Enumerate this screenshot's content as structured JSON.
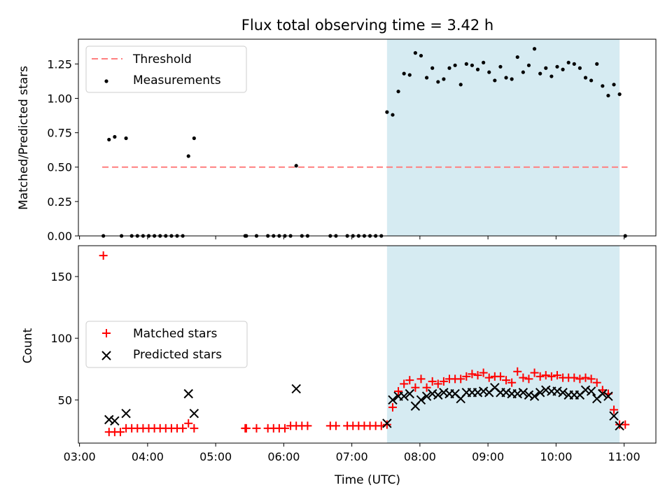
{
  "figure": {
    "title": "Flux total observing time = 3.42 h",
    "xlabel": "Time (UTC)"
  },
  "chart_data": [
    {
      "type": "scatter",
      "ylabel": "Matched/Predicted stars",
      "ylim": [
        0,
        1.43
      ],
      "yticks": [
        "0.00",
        "0.25",
        "0.50",
        "0.75",
        "1.00",
        "1.25"
      ],
      "xlim": [
        "02:59",
        "11:28"
      ],
      "shaded_span": [
        "07:31",
        "10:56"
      ],
      "shade_color": "#add8e6",
      "legend_position": "top-left",
      "threshold": {
        "name": "Threshold",
        "value": 0.5,
        "x_range": [
          "03:20",
          "11:03"
        ],
        "color": "#ff7f7f"
      },
      "series": [
        {
          "name": "Measurements",
          "color": "#000000",
          "marker": "dot",
          "points": [
            [
              "03:21",
              0
            ],
            [
              "03:26",
              0.7
            ],
            [
              "03:31",
              0.72
            ],
            [
              "03:37",
              0
            ],
            [
              "03:41",
              0.71
            ],
            [
              "03:46",
              0
            ],
            [
              "03:51",
              0
            ],
            [
              "03:56",
              0
            ],
            [
              "04:01",
              0
            ],
            [
              "04:06",
              0
            ],
            [
              "04:11",
              0
            ],
            [
              "04:16",
              0
            ],
            [
              "04:21",
              0
            ],
            [
              "04:26",
              0
            ],
            [
              "04:31",
              0
            ],
            [
              "04:36",
              0.58
            ],
            [
              "04:41",
              0.71
            ],
            [
              "05:26",
              0
            ],
            [
              "05:27",
              0
            ],
            [
              "05:36",
              0
            ],
            [
              "05:46",
              0
            ],
            [
              "05:51",
              0
            ],
            [
              "05:56",
              0
            ],
            [
              "06:01",
              0
            ],
            [
              "06:06",
              0
            ],
            [
              "06:11",
              0.51
            ],
            [
              "06:16",
              0
            ],
            [
              "06:21",
              0
            ],
            [
              "06:41",
              0
            ],
            [
              "06:46",
              0
            ],
            [
              "06:56",
              0
            ],
            [
              "07:01",
              0
            ],
            [
              "07:06",
              0
            ],
            [
              "07:11",
              0
            ],
            [
              "07:16",
              0
            ],
            [
              "07:21",
              0
            ],
            [
              "07:26",
              0
            ],
            [
              "07:31",
              0.9
            ],
            [
              "07:36",
              0.88
            ],
            [
              "07:41",
              1.05
            ],
            [
              "07:46",
              1.18
            ],
            [
              "07:51",
              1.17
            ],
            [
              "07:56",
              1.33
            ],
            [
              "08:01",
              1.31
            ],
            [
              "08:06",
              1.15
            ],
            [
              "08:11",
              1.22
            ],
            [
              "08:16",
              1.12
            ],
            [
              "08:21",
              1.14
            ],
            [
              "08:26",
              1.22
            ],
            [
              "08:31",
              1.24
            ],
            [
              "08:36",
              1.1
            ],
            [
              "08:41",
              1.25
            ],
            [
              "08:46",
              1.24
            ],
            [
              "08:51",
              1.21
            ],
            [
              "08:56",
              1.26
            ],
            [
              "09:01",
              1.19
            ],
            [
              "09:06",
              1.13
            ],
            [
              "09:11",
              1.23
            ],
            [
              "09:16",
              1.15
            ],
            [
              "09:21",
              1.14
            ],
            [
              "09:26",
              1.3
            ],
            [
              "09:31",
              1.19
            ],
            [
              "09:36",
              1.24
            ],
            [
              "09:41",
              1.36
            ],
            [
              "09:46",
              1.18
            ],
            [
              "09:51",
              1.22
            ],
            [
              "09:56",
              1.16
            ],
            [
              "10:01",
              1.23
            ],
            [
              "10:06",
              1.21
            ],
            [
              "10:11",
              1.26
            ],
            [
              "10:16",
              1.25
            ],
            [
              "10:21",
              1.22
            ],
            [
              "10:26",
              1.15
            ],
            [
              "10:31",
              1.13
            ],
            [
              "10:36",
              1.25
            ],
            [
              "10:41",
              1.09
            ],
            [
              "10:46",
              1.02
            ],
            [
              "10:51",
              1.1
            ],
            [
              "10:56",
              1.03
            ],
            [
              "11:01",
              0
            ]
          ]
        }
      ]
    },
    {
      "type": "scatter",
      "ylabel": "Count",
      "ylim": [
        15,
        175
      ],
      "yticks": [
        "50",
        "100",
        "150"
      ],
      "xlim": [
        "02:59",
        "11:28"
      ],
      "xticks": [
        "03:00",
        "04:00",
        "05:00",
        "06:00",
        "07:00",
        "08:00",
        "09:00",
        "10:00",
        "11:00"
      ],
      "shaded_span": [
        "07:31",
        "10:56"
      ],
      "shade_color": "#add8e6",
      "legend_position": "center-left",
      "series": [
        {
          "name": "Matched stars",
          "color": "#ff0000",
          "marker": "plus",
          "points": [
            [
              "03:21",
              167
            ],
            [
              "03:26",
              24
            ],
            [
              "03:31",
              24
            ],
            [
              "03:36",
              24
            ],
            [
              "03:41",
              27
            ],
            [
              "03:46",
              27
            ],
            [
              "03:51",
              27
            ],
            [
              "03:56",
              27
            ],
            [
              "04:01",
              27
            ],
            [
              "04:06",
              27
            ],
            [
              "04:11",
              27
            ],
            [
              "04:16",
              27
            ],
            [
              "04:21",
              27
            ],
            [
              "04:26",
              27
            ],
            [
              "04:31",
              27
            ],
            [
              "04:36",
              31
            ],
            [
              "04:41",
              27
            ],
            [
              "05:26",
              27
            ],
            [
              "05:27",
              27
            ],
            [
              "05:36",
              27
            ],
            [
              "05:46",
              27
            ],
            [
              "05:51",
              27
            ],
            [
              "05:56",
              27
            ],
            [
              "06:01",
              27
            ],
            [
              "06:06",
              29
            ],
            [
              "06:11",
              29
            ],
            [
              "06:16",
              29
            ],
            [
              "06:21",
              29
            ],
            [
              "06:41",
              29
            ],
            [
              "06:46",
              29
            ],
            [
              "06:56",
              29
            ],
            [
              "07:01",
              29
            ],
            [
              "07:06",
              29
            ],
            [
              "07:11",
              29
            ],
            [
              "07:16",
              29
            ],
            [
              "07:21",
              29
            ],
            [
              "07:26",
              29
            ],
            [
              "07:31",
              30
            ],
            [
              "07:36",
              44
            ],
            [
              "07:41",
              57
            ],
            [
              "07:46",
              63
            ],
            [
              "07:51",
              66
            ],
            [
              "07:56",
              60
            ],
            [
              "08:01",
              67
            ],
            [
              "08:06",
              60
            ],
            [
              "08:11",
              65
            ],
            [
              "08:16",
              63
            ],
            [
              "08:21",
              65
            ],
            [
              "08:26",
              67
            ],
            [
              "08:31",
              67
            ],
            [
              "08:36",
              67
            ],
            [
              "08:41",
              69
            ],
            [
              "08:46",
              71
            ],
            [
              "08:51",
              70
            ],
            [
              "08:56",
              72
            ],
            [
              "09:01",
              68
            ],
            [
              "09:06",
              69
            ],
            [
              "09:11",
              69
            ],
            [
              "09:16",
              66
            ],
            [
              "09:21",
              64
            ],
            [
              "09:26",
              73
            ],
            [
              "09:31",
              68
            ],
            [
              "09:36",
              67
            ],
            [
              "09:41",
              72
            ],
            [
              "09:46",
              69
            ],
            [
              "09:51",
              70
            ],
            [
              "09:56",
              69
            ],
            [
              "10:01",
              70
            ],
            [
              "10:06",
              68
            ],
            [
              "10:11",
              68
            ],
            [
              "10:16",
              68
            ],
            [
              "10:21",
              67
            ],
            [
              "10:26",
              68
            ],
            [
              "10:31",
              67
            ],
            [
              "10:36",
              64
            ],
            [
              "10:41",
              58
            ],
            [
              "10:46",
              55
            ],
            [
              "10:51",
              42
            ],
            [
              "10:56",
              30
            ],
            [
              "11:01",
              30
            ]
          ]
        },
        {
          "name": "Predicted stars",
          "color": "#000000",
          "marker": "x",
          "points": [
            [
              "03:26",
              34
            ],
            [
              "03:31",
              33
            ],
            [
              "03:41",
              39
            ],
            [
              "04:36",
              55
            ],
            [
              "04:41",
              39
            ],
            [
              "06:11",
              59
            ],
            [
              "07:31",
              31
            ],
            [
              "07:36",
              50
            ],
            [
              "07:41",
              53
            ],
            [
              "07:46",
              53
            ],
            [
              "07:51",
              55
            ],
            [
              "07:56",
              45
            ],
            [
              "08:01",
              50
            ],
            [
              "08:06",
              53
            ],
            [
              "08:11",
              55
            ],
            [
              "08:16",
              54
            ],
            [
              "08:21",
              56
            ],
            [
              "08:26",
              55
            ],
            [
              "08:31",
              55
            ],
            [
              "08:36",
              51
            ],
            [
              "08:41",
              56
            ],
            [
              "08:46",
              56
            ],
            [
              "08:51",
              56
            ],
            [
              "08:56",
              57
            ],
            [
              "09:01",
              56
            ],
            [
              "09:06",
              60
            ],
            [
              "09:11",
              56
            ],
            [
              "09:16",
              56
            ],
            [
              "09:21",
              55
            ],
            [
              "09:26",
              55
            ],
            [
              "09:31",
              56
            ],
            [
              "09:36",
              54
            ],
            [
              "09:41",
              53
            ],
            [
              "09:46",
              56
            ],
            [
              "09:51",
              58
            ],
            [
              "09:56",
              57
            ],
            [
              "10:01",
              57
            ],
            [
              "10:06",
              56
            ],
            [
              "10:11",
              54
            ],
            [
              "10:16",
              54
            ],
            [
              "10:21",
              54
            ],
            [
              "10:26",
              58
            ],
            [
              "10:31",
              57
            ],
            [
              "10:36",
              51
            ],
            [
              "10:41",
              55
            ],
            [
              "10:46",
              53
            ],
            [
              "10:51",
              37
            ],
            [
              "10:56",
              29
            ]
          ]
        }
      ]
    }
  ]
}
